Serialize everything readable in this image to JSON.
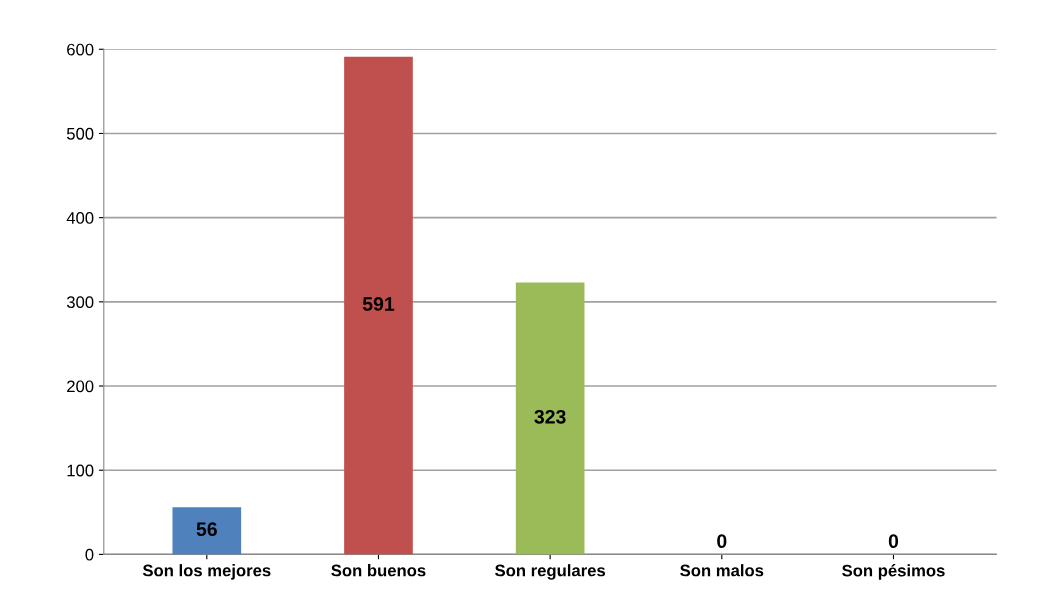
{
  "chart_data": {
    "type": "bar",
    "categories": [
      "Son los mejores",
      "Son buenos",
      "Son regulares",
      "Son malos",
      "Son pésimos"
    ],
    "values": [
      56,
      591,
      323,
      0,
      0
    ],
    "colors": [
      "#4f81bd",
      "#c0504d",
      "#9bbb59",
      "#8064a2",
      "#4bacc6"
    ],
    "ylim": [
      0,
      600
    ],
    "yticks": [
      0,
      100,
      200,
      300,
      400,
      500,
      600
    ],
    "grid": "y",
    "data_labels": true
  }
}
